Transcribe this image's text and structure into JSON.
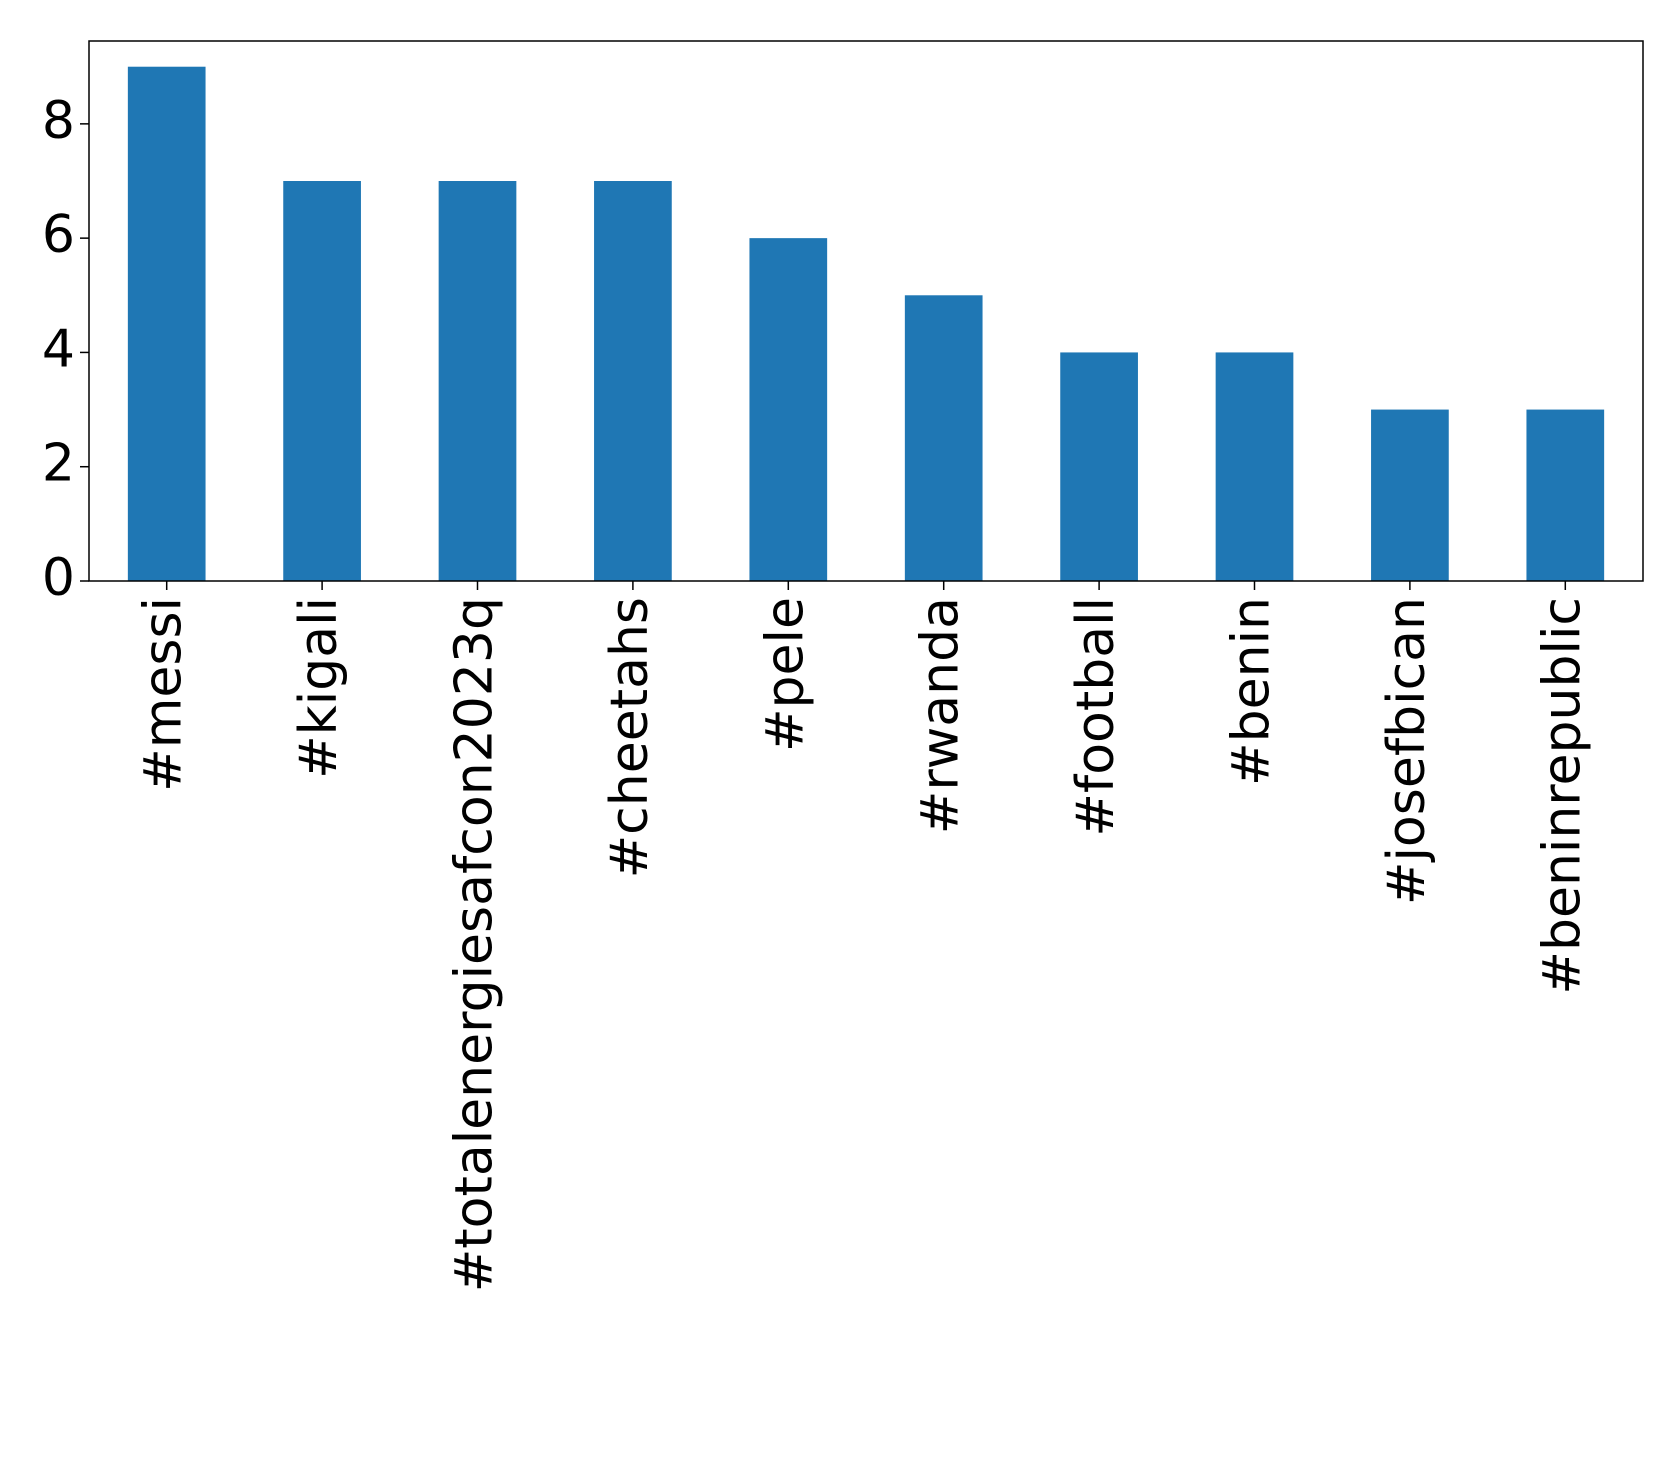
{
  "chart_data": {
    "type": "bar",
    "categories": [
      "#messi",
      "#kigali",
      "#totalenergiesafcon2023q",
      "#cheetahs",
      "#pele",
      "#rwanda",
      "#football",
      "#benin",
      "#josefbican",
      "#beninrepublic"
    ],
    "values": [
      9,
      7,
      7,
      7,
      6,
      5,
      4,
      4,
      3,
      3
    ],
    "color": "#1f77b4",
    "ylim": [
      0,
      9.45
    ],
    "yticks": [
      0,
      2,
      4,
      6,
      8
    ],
    "grid": false
  }
}
